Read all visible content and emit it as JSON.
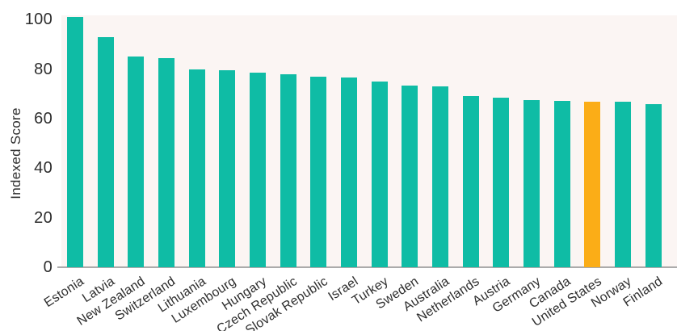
{
  "chart_data": {
    "type": "bar",
    "ylabel": "Indexed Score",
    "categories": [
      "Estonia",
      "Latvia",
      "New Zealand",
      "Switzerland",
      "Lithuania",
      "Luxembourg",
      "Hungary",
      "Czech Republic",
      "Slovak Republic",
      "Israel",
      "Turkey",
      "Sweden",
      "Australia",
      "Netherlands",
      "Austria",
      "Germany",
      "Canada",
      "United States",
      "Norway",
      "Finland"
    ],
    "values": [
      101,
      93,
      85,
      84.5,
      80,
      79.5,
      78.5,
      78,
      77,
      76.5,
      75,
      73.5,
      73,
      69,
      68.5,
      67.5,
      67.3,
      67,
      66.8,
      65.8
    ],
    "highlight_category": "United States",
    "yticks": [
      0,
      20,
      40,
      60,
      80,
      100
    ],
    "ylim": [
      0,
      101.7
    ],
    "grid": false,
    "legend_position": "none",
    "colors": {
      "bar": "#0fbca5",
      "highlight": "#fbad17",
      "plot_background": "#fbf5f3",
      "axis_line": "#ababab",
      "text": "#2e2e2e"
    }
  }
}
